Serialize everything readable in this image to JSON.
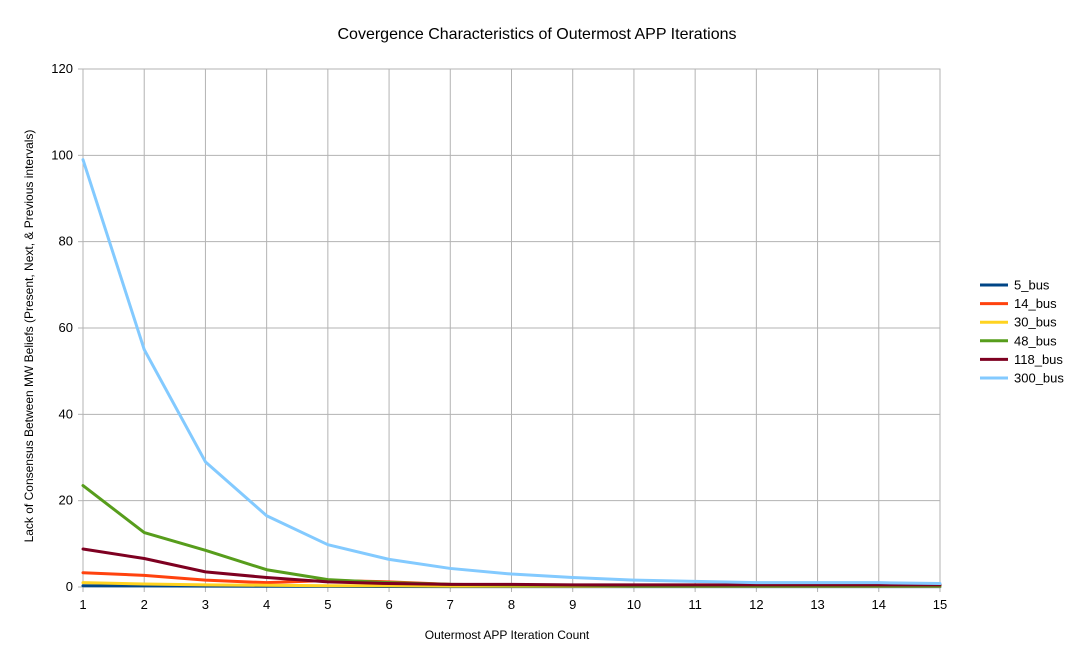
{
  "chart_data": {
    "type": "line",
    "title": "Covergence Characteristics of Outermost APP Iterations",
    "xlabel": "Outermost APP Iteration Count",
    "ylabel": "Lack of Consensus Between MW Beliefs (Present, Next, & Previous intervals)",
    "x": [
      1,
      2,
      3,
      4,
      5,
      6,
      7,
      8,
      9,
      10,
      11,
      12,
      13,
      14,
      15
    ],
    "xlim": [
      1,
      15
    ],
    "ylim": [
      0,
      120
    ],
    "yticks": [
      0,
      20,
      40,
      60,
      80,
      100,
      120
    ],
    "grid": true,
    "legend_position": "right",
    "series": [
      {
        "name": "5_bus",
        "color": "#004586",
        "values": [
          0.3,
          0.25,
          0.2,
          0.18,
          0.15,
          0.12,
          0.1,
          0.1,
          0.1,
          0.1,
          0.1,
          0.1,
          0.1,
          0.1,
          0.1
        ]
      },
      {
        "name": "14_bus",
        "color": "#ff420e",
        "values": [
          3.3,
          2.7,
          1.6,
          1.0,
          1.5,
          1.2,
          0.6,
          0.5,
          0.4,
          0.4,
          0.3,
          0.3,
          0.3,
          0.3,
          0.3
        ]
      },
      {
        "name": "30_bus",
        "color": "#ffd320",
        "values": [
          1.0,
          0.7,
          0.5,
          0.4,
          0.3,
          0.3,
          0.2,
          0.2,
          0.2,
          0.2,
          0.2,
          0.2,
          0.2,
          0.2,
          0.2
        ]
      },
      {
        "name": "48_bus",
        "color": "#579d1c",
        "values": [
          23.5,
          12.6,
          8.5,
          4.0,
          1.7,
          1.0,
          0.6,
          0.5,
          0.4,
          0.3,
          0.3,
          0.3,
          0.3,
          0.3,
          0.3
        ]
      },
      {
        "name": "118_bus",
        "color": "#7e0021",
        "values": [
          8.8,
          6.6,
          3.5,
          2.2,
          1.2,
          0.8,
          0.6,
          0.6,
          0.5,
          0.5,
          0.5,
          0.5,
          0.5,
          0.5,
          0.5
        ]
      },
      {
        "name": "300_bus",
        "color": "#83caff",
        "values": [
          99.0,
          55.0,
          29.0,
          16.5,
          9.8,
          6.4,
          4.3,
          3.0,
          2.2,
          1.6,
          1.3,
          1.0,
          1.0,
          1.0,
          0.8
        ]
      }
    ]
  }
}
